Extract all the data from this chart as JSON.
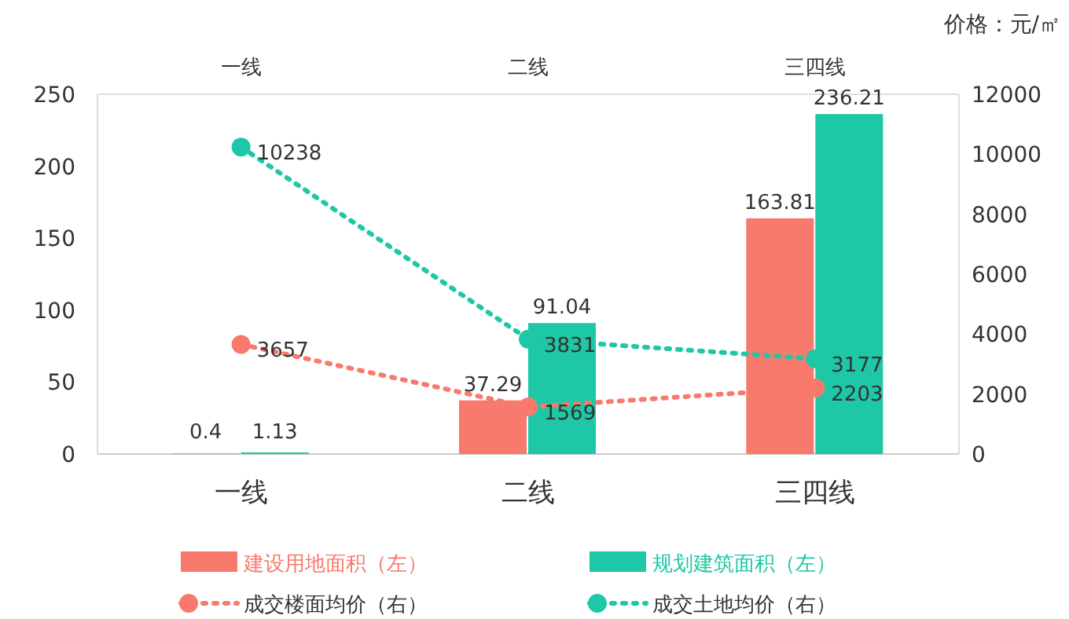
{
  "chart_data": {
    "type": "bar",
    "categories": [
      "一线",
      "二线",
      "三四线"
    ],
    "y2label": "价格：元/㎡",
    "ylim": [
      0,
      250
    ],
    "yticks": [
      0,
      50,
      100,
      150,
      200,
      250
    ],
    "y2lim": [
      0,
      12000
    ],
    "y2ticks": [
      0,
      2000,
      4000,
      6000,
      8000,
      10000,
      12000
    ],
    "data_labels": true,
    "legend": "bottom",
    "grid": false,
    "series": [
      {
        "name": "建设用地面积（左）",
        "color": "#f87a6c",
        "values": [
          0.4,
          37.29,
          163.81
        ]
      },
      {
        "name": "规划建筑面积（左）",
        "color": "#1ec7a6",
        "values": [
          1.13,
          91.04,
          236.21
        ]
      },
      {
        "name": "成交楼面均价（右）",
        "type": "line",
        "axis": "y2",
        "color": "#f87a6c",
        "marker": "circle",
        "line_style": "dotted",
        "values": [
          3657,
          1569,
          2203
        ]
      },
      {
        "name": "成交土地均价（右）",
        "type": "line",
        "axis": "y2",
        "color": "#1ec7a6",
        "marker": "circle",
        "line_style": "dotted",
        "values": [
          10238,
          3831,
          3177
        ]
      }
    ]
  }
}
